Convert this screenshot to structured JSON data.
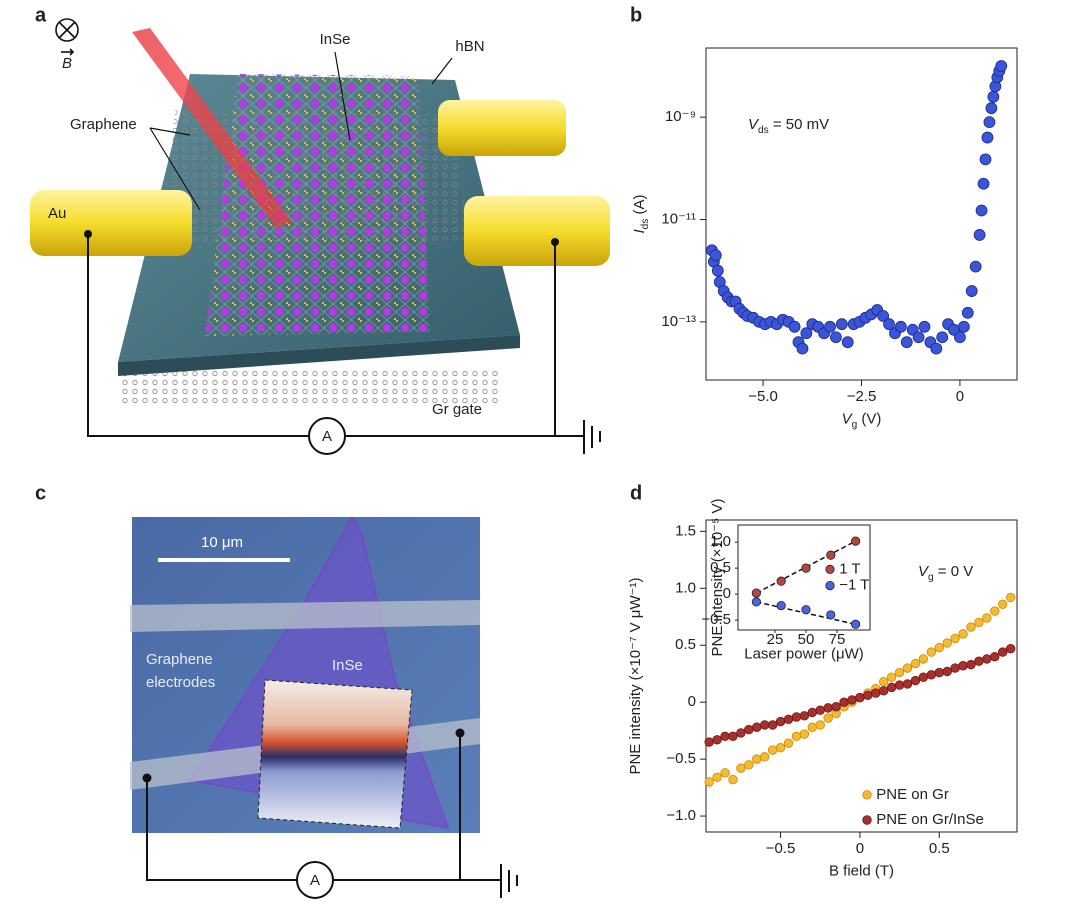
{
  "panels": {
    "labels": [
      "a",
      "b",
      "c",
      "d"
    ]
  },
  "diagram_a": {
    "b_symbol": "B",
    "inse": "InSe",
    "hbn": "hBN",
    "graphene": "Graphene",
    "au": "Au",
    "gr_gate": "Gr gate",
    "ammeter": "A"
  },
  "diagram_c": {
    "scale_bar": "10 μm",
    "electrodes": [
      "Graphene",
      "electrodes"
    ],
    "inse": "InSe",
    "ammeter": "A"
  },
  "chart_data": [
    {
      "type": "scatter",
      "log_y": true,
      "color": "#3b55d9",
      "edge_color": "#1b2a8c",
      "x": [
        -6.3,
        -6.25,
        -6.2,
        -6.15,
        -6.1,
        -6.0,
        -5.9,
        -5.8,
        -5.7,
        -5.6,
        -5.5,
        -5.4,
        -5.25,
        -5.1,
        -4.95,
        -4.8,
        -4.65,
        -4.5,
        -4.35,
        -4.2,
        -4.1,
        -4.0,
        -3.9,
        -3.75,
        -3.6,
        -3.45,
        -3.3,
        -3.15,
        -3.0,
        -2.85,
        -2.7,
        -2.55,
        -2.4,
        -2.25,
        -2.1,
        -1.95,
        -1.8,
        -1.65,
        -1.5,
        -1.35,
        -1.2,
        -1.05,
        -0.9,
        -0.75,
        -0.6,
        -0.45,
        -0.3,
        -0.15,
        0.0,
        0.1,
        0.2,
        0.3,
        0.4,
        0.5,
        0.55,
        0.6,
        0.65,
        0.7,
        0.75,
        0.8,
        0.85,
        0.9,
        0.95,
        1.0,
        1.05
      ],
      "values": [
        2.5e-12,
        1.5e-12,
        2e-12,
        1e-12,
        6e-13,
        4e-13,
        3e-13,
        2.5e-13,
        2.5e-13,
        1.8e-13,
        1.5e-13,
        1.3e-13,
        1.2e-13,
        1e-13,
        9e-14,
        1e-13,
        9e-14,
        1.1e-13,
        1e-13,
        8e-14,
        4e-14,
        3e-14,
        6e-14,
        9e-14,
        8e-14,
        6e-14,
        8e-14,
        5e-14,
        9e-14,
        4e-14,
        9e-14,
        1e-13,
        1.2e-13,
        1.4e-13,
        1.7e-13,
        1.3e-13,
        9e-14,
        6e-14,
        8e-14,
        4e-14,
        7e-14,
        5e-14,
        8e-14,
        4e-14,
        3e-14,
        5e-14,
        9e-14,
        7e-14,
        5e-14,
        8e-14,
        1.5e-13,
        4e-13,
        1.2e-12,
        5e-12,
        1.5e-11,
        5e-11,
        1.5e-10,
        4e-10,
        8e-10,
        1.5e-09,
        2.5e-09,
        4e-09,
        6e-09,
        8e-09,
        1e-08
      ],
      "xlim": [
        -6.45,
        1.45
      ],
      "ylim": [
        7.3e-15,
        2.25e-08
      ],
      "xticks": [
        {
          "value": -5,
          "label": "−5.0"
        },
        {
          "value": -2.5,
          "label": "−2.5"
        },
        0
      ],
      "yticks": [
        {
          "value": 1e-13,
          "label": "10⁻¹³"
        },
        {
          "value": 1e-11,
          "label": "10⁻¹¹"
        },
        {
          "value": 1e-09,
          "label": "10⁻⁹"
        }
      ],
      "x_label": [
        "V",
        "g",
        " (V)"
      ],
      "y_label": [
        "I",
        "ds",
        " (A)"
      ],
      "annotation": [
        "V",
        "ds",
        " = 50 mV"
      ]
    },
    {
      "type": "scatter",
      "legend": "lower right",
      "x": [
        -0.95,
        -0.9,
        -0.85,
        -0.8,
        -0.75,
        -0.7,
        -0.65,
        -0.6,
        -0.55,
        -0.5,
        -0.45,
        -0.4,
        -0.35,
        -0.3,
        -0.25,
        -0.2,
        -0.15,
        -0.1,
        -0.05,
        0.0,
        0.05,
        0.1,
        0.15,
        0.2,
        0.25,
        0.3,
        0.35,
        0.4,
        0.45,
        0.5,
        0.55,
        0.6,
        0.65,
        0.7,
        0.75,
        0.8,
        0.85,
        0.9,
        0.95
      ],
      "series": [
        {
          "name": "PNE on Gr",
          "color": "#f6b92f",
          "edge_color": "#c98a10",
          "values": [
            -0.7,
            -0.66,
            -0.62,
            -0.68,
            -0.58,
            -0.55,
            -0.5,
            -0.48,
            -0.42,
            -0.4,
            -0.36,
            -0.3,
            -0.28,
            -0.22,
            -0.2,
            -0.14,
            -0.1,
            -0.04,
            0.0,
            0.04,
            0.08,
            0.12,
            0.18,
            0.22,
            0.26,
            0.3,
            0.34,
            0.38,
            0.44,
            0.48,
            0.52,
            0.56,
            0.6,
            0.66,
            0.7,
            0.74,
            0.8,
            0.86,
            0.92
          ]
        },
        {
          "name": "PNE on Gr/InSe",
          "color": "#a8302c",
          "edge_color": "#6e1512",
          "values": [
            -0.35,
            -0.33,
            -0.3,
            -0.3,
            -0.27,
            -0.24,
            -0.22,
            -0.2,
            -0.2,
            -0.17,
            -0.15,
            -0.13,
            -0.12,
            -0.09,
            -0.07,
            -0.05,
            -0.04,
            0.0,
            0.02,
            0.04,
            0.06,
            0.08,
            0.1,
            0.13,
            0.15,
            0.16,
            0.19,
            0.22,
            0.24,
            0.26,
            0.27,
            0.3,
            0.32,
            0.33,
            0.36,
            0.38,
            0.4,
            0.44,
            0.47
          ]
        }
      ],
      "xlim": [
        -0.97,
        0.99
      ],
      "ylim": [
        -1.14,
        1.6
      ],
      "xticks": [
        {
          "value": -0.5,
          "label": "−0.5"
        },
        0,
        0.5
      ],
      "yticks": [
        {
          "value": -1,
          "label": "−1.0"
        },
        {
          "value": -0.5,
          "label": "−0.5"
        },
        0,
        0.5,
        {
          "value": 1,
          "label": "1.0"
        },
        1.5
      ],
      "x_label": "B field (T)",
      "y_label": "PNE intensity (×10⁻⁷ V μW⁻¹)",
      "annotation": [
        "V",
        "g",
        " = 0 V"
      ]
    },
    {
      "type": "scatter",
      "legend": "center right",
      "line_style": "dashed",
      "x": [
        10,
        30,
        50,
        70,
        90
      ],
      "series": [
        {
          "name": "1 T",
          "color": "#b5453f",
          "edge_color": "#222222",
          "values": [
            0.02,
            0.25,
            0.5,
            0.75,
            1.02
          ]
        },
        {
          "name": "−1 T",
          "color": "#4a63e0",
          "edge_color": "#222222",
          "values": [
            -0.15,
            -0.22,
            -0.3,
            -0.4,
            -0.58
          ]
        }
      ],
      "xlim": [
        -4.8,
        101.6
      ],
      "ylim": [
        -0.69,
        1.33
      ],
      "xticks": [
        25,
        50,
        75
      ],
      "yticks": [
        {
          "value": -0.5,
          "label": "−0.5"
        },
        0,
        0.5,
        {
          "value": 1,
          "label": "1.0"
        }
      ],
      "x_label": "Laser power (μW)",
      "y_label": "PNE intensity (×10⁻⁵ V)"
    }
  ]
}
